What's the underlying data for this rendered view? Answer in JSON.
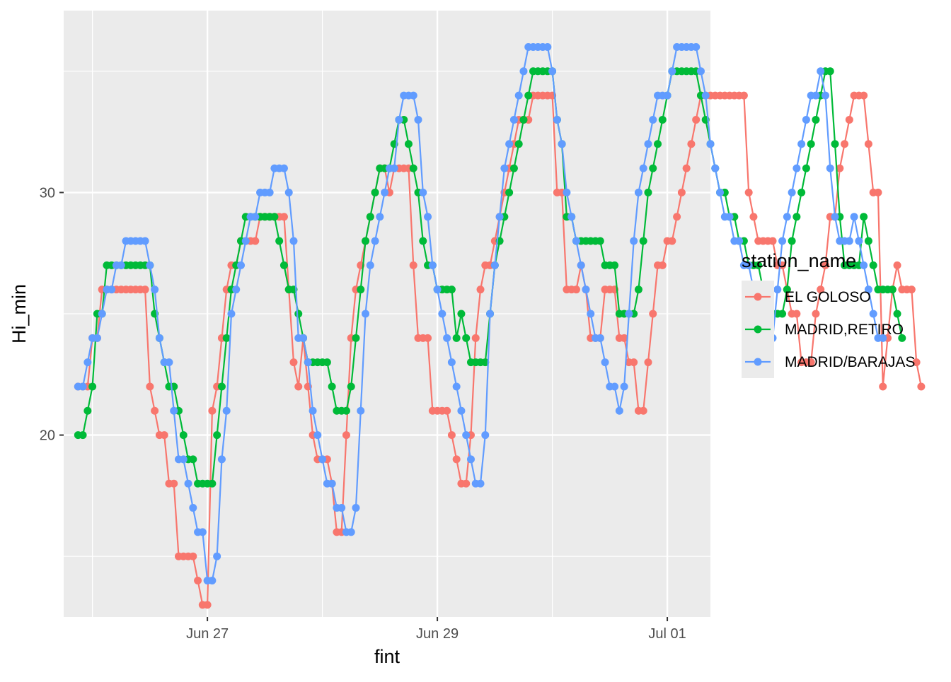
{
  "chart_data": {
    "type": "line",
    "title": "",
    "xlabel": "fint",
    "ylabel": "Hi_min",
    "x_type": "time",
    "x_range": [
      "2023-06-25 18:00",
      "2023-07-01 09:00"
    ],
    "x_ticks": [
      {
        "label": "Jun 27",
        "t": "2023-06-27 00:00"
      },
      {
        "label": "Jun 29",
        "t": "2023-06-29 00:00"
      },
      {
        "label": "Jul 01",
        "t": "2023-07-01 00:00"
      }
    ],
    "ylim": [
      12.5,
      37.5
    ],
    "y_ticks": [
      20,
      30
    ],
    "y_minor": [
      15,
      25,
      35
    ],
    "grid": true,
    "legend": {
      "title": "station_name",
      "position": "right"
    },
    "t0": "2023-06-26 00:00",
    "step_hours": 1,
    "series": [
      {
        "name": "EL GOLOSO",
        "color": "#F8766D",
        "start": "2023-06-25 21:00",
        "values": [
          22,
          22,
          22,
          24,
          24,
          26,
          26,
          26,
          26,
          26,
          26,
          26,
          26,
          26,
          26,
          22,
          21,
          20,
          20,
          18,
          18,
          15,
          15,
          15,
          15,
          14,
          13,
          13,
          21,
          22,
          24,
          26,
          27,
          27,
          28,
          28,
          28,
          28,
          29,
          29,
          29,
          29,
          29,
          29,
          26,
          23,
          22,
          24,
          22,
          20,
          19,
          19,
          19,
          18,
          16,
          16,
          20,
          24,
          26,
          27,
          28,
          29,
          30,
          31,
          31,
          30,
          31,
          31,
          31,
          31,
          27,
          24,
          24,
          24,
          21,
          21,
          21,
          21,
          20,
          19,
          18,
          18,
          20,
          24,
          26,
          27,
          27,
          28,
          29,
          30,
          31,
          32,
          33,
          33,
          33,
          34,
          34,
          34,
          34,
          34,
          30,
          30,
          26,
          26,
          26,
          27,
          26,
          24,
          24,
          24,
          26,
          26,
          26,
          24,
          24,
          23,
          23,
          21,
          21,
          23,
          25,
          27,
          27,
          28,
          28,
          29,
          30,
          31,
          32,
          33,
          34,
          34,
          34,
          34,
          34,
          34,
          34,
          34,
          34,
          34,
          30,
          29,
          28,
          28,
          28,
          28,
          27,
          27,
          26,
          25,
          25,
          23,
          23,
          23,
          25,
          26,
          27,
          29,
          29,
          31,
          32,
          33,
          34,
          34,
          34,
          32,
          30,
          30,
          22,
          24,
          26,
          27,
          26,
          26,
          26,
          23,
          22
        ]
      },
      {
        "name": "MADRID,RETIRO",
        "color": "#00BA38",
        "start": "2023-06-25 21:00",
        "values": [
          20,
          20,
          21,
          22,
          25,
          25,
          27,
          27,
          27,
          27,
          27,
          27,
          27,
          27,
          27,
          27,
          25,
          24,
          23,
          22,
          22,
          21,
          20,
          19,
          19,
          18,
          18,
          18,
          18,
          20,
          22,
          24,
          26,
          27,
          28,
          29,
          29,
          29,
          29,
          29,
          29,
          29,
          28,
          27,
          26,
          26,
          25,
          24,
          23,
          23,
          23,
          23,
          23,
          22,
          21,
          21,
          21,
          22,
          24,
          26,
          28,
          29,
          30,
          31,
          31,
          31,
          32,
          33,
          33,
          32,
          31,
          30,
          28,
          27,
          27,
          26,
          26,
          26,
          26,
          24,
          25,
          24,
          23,
          23,
          23,
          23,
          25,
          27,
          28,
          29,
          30,
          31,
          32,
          33,
          34,
          35,
          35,
          35,
          35,
          35,
          33,
          32,
          29,
          29,
          28,
          28,
          28,
          28,
          28,
          28,
          27,
          27,
          27,
          25,
          25,
          25,
          25,
          26,
          28,
          30,
          31,
          32,
          33,
          34,
          35,
          35,
          35,
          35,
          35,
          35,
          34,
          33,
          32,
          31,
          30,
          30,
          29,
          29,
          28,
          28,
          27,
          27,
          27,
          26,
          25,
          25,
          25,
          25,
          26,
          28,
          29,
          30,
          31,
          32,
          33,
          34,
          35,
          35,
          32,
          29,
          27,
          27,
          27,
          27,
          29,
          28,
          27,
          26,
          26,
          26,
          26,
          25,
          24
        ]
      },
      {
        "name": "MADRID/BARAJAS",
        "color": "#619CFF",
        "start": "2023-06-25 21:00",
        "values": [
          22,
          22,
          23,
          24,
          24,
          25,
          26,
          26,
          27,
          27,
          28,
          28,
          28,
          28,
          28,
          27,
          26,
          24,
          23,
          23,
          21,
          19,
          19,
          18,
          17,
          16,
          16,
          14,
          14,
          15,
          19,
          21,
          25,
          26,
          27,
          28,
          29,
          29,
          30,
          30,
          30,
          31,
          31,
          31,
          30,
          28,
          24,
          24,
          23,
          21,
          20,
          19,
          18,
          18,
          17,
          17,
          16,
          16,
          17,
          21,
          25,
          27,
          28,
          29,
          30,
          31,
          31,
          33,
          34,
          34,
          34,
          33,
          30,
          29,
          27,
          26,
          25,
          24,
          23,
          22,
          21,
          20,
          19,
          18,
          18,
          20,
          25,
          27,
          29,
          31,
          32,
          33,
          34,
          35,
          36,
          36,
          36,
          36,
          36,
          35,
          33,
          32,
          30,
          29,
          28,
          27,
          26,
          25,
          24,
          24,
          23,
          22,
          22,
          21,
          22,
          25,
          28,
          30,
          31,
          32,
          33,
          34,
          34,
          34,
          35,
          36,
          36,
          36,
          36,
          36,
          35,
          34,
          32,
          31,
          30,
          29,
          29,
          28,
          28,
          27,
          27,
          26,
          25,
          24,
          24,
          24,
          26,
          28,
          29,
          30,
          31,
          32,
          33,
          34,
          34,
          35,
          34,
          31,
          29,
          28,
          28,
          28,
          29,
          28,
          27,
          26,
          25,
          24,
          24
        ]
      }
    ]
  }
}
